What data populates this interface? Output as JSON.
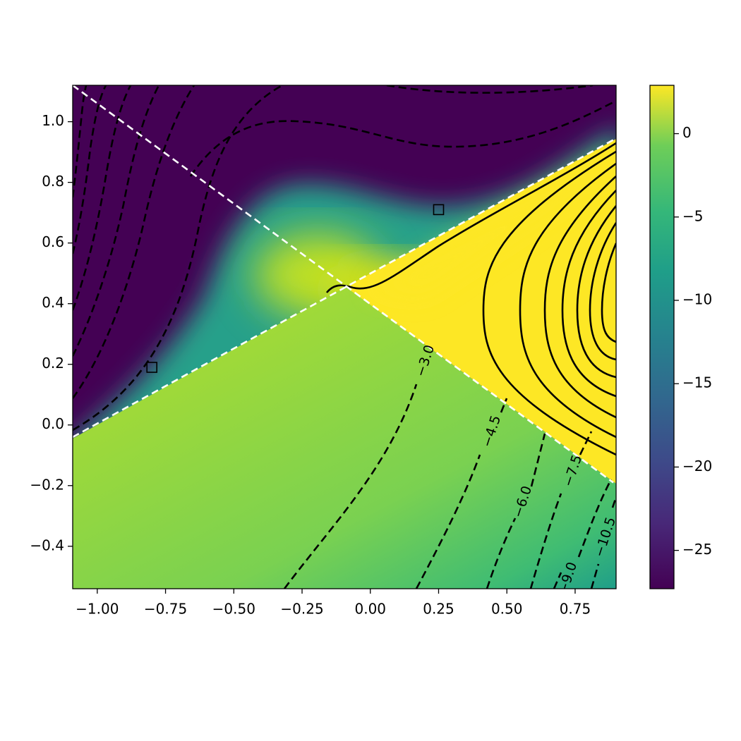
{
  "chart_data": {
    "type": "contour",
    "xlim": [
      -1.09,
      0.9
    ],
    "ylim": [
      -0.54,
      1.12
    ],
    "xticks": [
      {
        "value": -1,
        "label": "−1.00"
      },
      {
        "value": -0.75,
        "label": "−0.75"
      },
      {
        "value": -0.5,
        "label": "−0.50"
      },
      {
        "value": -0.25,
        "label": "−0.25"
      },
      {
        "value": 0,
        "label": "0.00"
      },
      {
        "value": 0.25,
        "label": "0.25"
      },
      {
        "value": 0.5,
        "label": "0.50"
      },
      {
        "value": 0.75,
        "label": "0.75"
      }
    ],
    "yticks": [
      {
        "value": -0.4,
        "label": "−0.4"
      },
      {
        "value": -0.2,
        "label": "−0.2"
      },
      {
        "value": 0,
        "label": "0.0"
      },
      {
        "value": 0.2,
        "label": "0.2"
      },
      {
        "value": 0.4,
        "label": "0.4"
      },
      {
        "value": 0.6,
        "label": "0.6"
      },
      {
        "value": 0.8,
        "label": "0.8"
      },
      {
        "value": 1,
        "label": "1.0"
      }
    ],
    "colorbar": {
      "clim": [
        -27.3,
        2.9
      ],
      "ticks": [
        0,
        {
          "value": -5,
          "label": "−5"
        },
        {
          "value": -10,
          "label": "−10"
        },
        {
          "value": -15,
          "label": "−15"
        },
        {
          "value": -20,
          "label": "−20"
        },
        {
          "value": -25,
          "label": "−25"
        }
      ]
    },
    "contour_labels": [
      {
        "value": -3.0,
        "label": "−3.0"
      },
      {
        "value": -4.5,
        "label": "−4.5"
      },
      {
        "value": -6.0,
        "label": "−6.0"
      },
      {
        "value": -7.5,
        "label": "−7.5"
      },
      {
        "value": -9.0,
        "label": "−9.0"
      },
      {
        "value": -10.5,
        "label": "−10.5"
      }
    ],
    "markers": {
      "x": [
        -0.8,
        0.25
      ],
      "y": [
        0.19,
        0.71
      ]
    },
    "lines": [
      {
        "x": [
          -1.09,
          0.89
        ],
        "y": [
          1.12,
          -0.19
        ]
      },
      {
        "x": [
          -1.09,
          0.89
        ],
        "y": [
          -0.04,
          0.94
        ]
      }
    ]
  }
}
